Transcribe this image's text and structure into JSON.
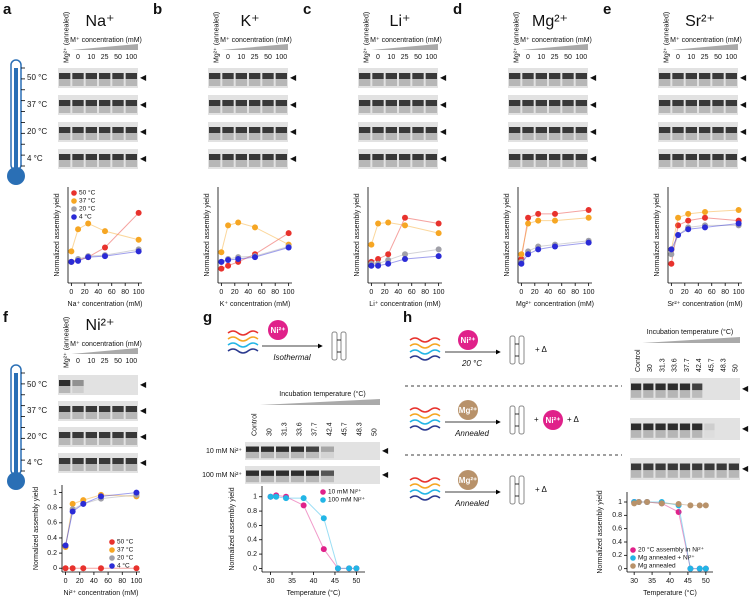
{
  "panels": [
    {
      "letter": "a",
      "title": "Na⁺"
    },
    {
      "letter": "b",
      "title": "K⁺"
    },
    {
      "letter": "c",
      "title": "Li⁺"
    },
    {
      "letter": "d",
      "title": "Mg²⁺"
    },
    {
      "letter": "e",
      "title": "Sr²⁺"
    },
    {
      "letter": "f",
      "title": "Ni²⁺"
    },
    {
      "letter": "g"
    },
    {
      "letter": "h"
    }
  ],
  "gel_labels": {
    "annealed": "Mg²⁺ (annealed)",
    "concentration": "M⁺ concentration (mM)",
    "lanes": [
      "0",
      "10",
      "25",
      "50",
      "100"
    ],
    "temperatures": [
      "50 °C",
      "37 °C",
      "20 °C",
      "4 °C"
    ]
  },
  "g_scheme": {
    "ion": "Ni²⁺",
    "process": "Isothermal",
    "gel_title": "Incubation temperature (°C)",
    "lanes": [
      "Control",
      "30",
      "31.3",
      "33.6",
      "37.7",
      "42.4",
      "45.7",
      "48.3",
      "50"
    ],
    "rows": [
      "10 mM Ni²⁺",
      "100 mM Ni²⁺"
    ]
  },
  "h_scheme": {
    "ni": "Ni²⁺",
    "mg": "Mg²⁺",
    "condition": "20 °C",
    "annealed": "Annealed",
    "delta": "+ Δ",
    "plus": "+"
  },
  "chart_data": [
    {
      "type": "line",
      "x_label": "Na⁺ concentration (mM)",
      "y_label": "Normalized assembly yield",
      "x": [
        0,
        10,
        25,
        50,
        100
      ],
      "xlim": [
        -5,
        105
      ],
      "xticks": [
        0,
        20,
        40,
        60,
        80,
        100
      ],
      "ylim": [
        0,
        1
      ],
      "legend": "upper-left",
      "series": [
        {
          "name": "50 °C",
          "color": "#e8322d",
          "values": [
            0.22,
            0.24,
            0.27,
            0.37,
            0.73
          ]
        },
        {
          "name": "37 °C",
          "color": "#f6a623",
          "values": [
            0.33,
            0.56,
            0.62,
            0.54,
            0.45
          ]
        },
        {
          "name": "20 °C",
          "color": "#a0a0a8",
          "values": [
            0.22,
            0.25,
            0.28,
            0.29,
            0.35
          ]
        },
        {
          "name": "4 °C",
          "color": "#2b2bd6",
          "values": [
            0.22,
            0.23,
            0.27,
            0.28,
            0.33
          ]
        }
      ]
    },
    {
      "type": "line",
      "x_label": "K⁺ concentration (mM)",
      "y_label": "Normalized assembly yield",
      "x": [
        0,
        10,
        25,
        50,
        100
      ],
      "xlim": [
        -5,
        105
      ],
      "xticks": [
        0,
        20,
        40,
        60,
        80,
        100
      ],
      "ylim": [
        0,
        1
      ],
      "series": [
        {
          "color": "#e8322d",
          "values": [
            0.15,
            0.18,
            0.22,
            0.3,
            0.52
          ]
        },
        {
          "color": "#f6a623",
          "values": [
            0.32,
            0.6,
            0.63,
            0.58,
            0.4
          ]
        },
        {
          "color": "#a0a0a8",
          "values": [
            0.22,
            0.25,
            0.27,
            0.28,
            0.38
          ]
        },
        {
          "color": "#2b2bd6",
          "values": [
            0.22,
            0.24,
            0.25,
            0.27,
            0.37
          ]
        }
      ]
    },
    {
      "type": "line",
      "x_label": "Li⁺ concentration (mM)",
      "y_label": "Normalized assembly yield",
      "x": [
        0,
        10,
        25,
        50,
        100
      ],
      "xlim": [
        -5,
        105
      ],
      "xticks": [
        0,
        20,
        40,
        60,
        80,
        100
      ],
      "ylim": [
        0,
        1
      ],
      "series": [
        {
          "color": "#e8322d",
          "values": [
            0.22,
            0.25,
            0.3,
            0.68,
            0.62
          ]
        },
        {
          "color": "#f6a623",
          "values": [
            0.4,
            0.62,
            0.63,
            0.6,
            0.52
          ]
        },
        {
          "color": "#a0a0a8",
          "values": [
            0.2,
            0.2,
            0.24,
            0.3,
            0.35
          ]
        },
        {
          "color": "#2b2bd6",
          "values": [
            0.18,
            0.18,
            0.2,
            0.25,
            0.28
          ]
        }
      ]
    },
    {
      "type": "line",
      "x_label": "Mg²⁺ concentration (mM)",
      "y_label": "Normalized assembly yield",
      "x": [
        0,
        10,
        25,
        50,
        100
      ],
      "xlim": [
        -5,
        105
      ],
      "xticks": [
        0,
        20,
        40,
        60,
        80,
        100
      ],
      "ylim": [
        0,
        1
      ],
      "series": [
        {
          "color": "#e8322d",
          "values": [
            0.25,
            0.68,
            0.72,
            0.72,
            0.76
          ]
        },
        {
          "color": "#f6a623",
          "values": [
            0.3,
            0.62,
            0.65,
            0.65,
            0.68
          ]
        },
        {
          "color": "#a0a0a8",
          "values": [
            0.22,
            0.33,
            0.38,
            0.4,
            0.44
          ]
        },
        {
          "color": "#2b2bd6",
          "values": [
            0.2,
            0.3,
            0.35,
            0.38,
            0.42
          ]
        }
      ]
    },
    {
      "type": "line",
      "x_label": "Sr²⁺ concentration (mM)",
      "y_label": "Normalized assembly yield",
      "x": [
        0,
        10,
        25,
        50,
        100
      ],
      "xlim": [
        -5,
        105
      ],
      "xticks": [
        0,
        20,
        40,
        60,
        80,
        100
      ],
      "ylim": [
        0,
        1
      ],
      "series": [
        {
          "color": "#e8322d",
          "values": [
            0.2,
            0.6,
            0.65,
            0.68,
            0.65
          ]
        },
        {
          "color": "#f6a623",
          "values": [
            0.35,
            0.68,
            0.72,
            0.74,
            0.76
          ]
        },
        {
          "color": "#a0a0a8",
          "values": [
            0.3,
            0.5,
            0.58,
            0.6,
            0.6
          ]
        },
        {
          "color": "#2b2bd6",
          "values": [
            0.35,
            0.5,
            0.56,
            0.58,
            0.62
          ]
        }
      ]
    },
    {
      "type": "line",
      "x_label": "Ni²⁺ concentration (mM)",
      "y_label": "Normalized assembly yield",
      "x": [
        0,
        10,
        25,
        50,
        100
      ],
      "xlim": [
        -5,
        105
      ],
      "xticks": [
        0,
        20,
        40,
        60,
        80,
        100
      ],
      "ylim": [
        -0.05,
        1.1
      ],
      "yticks": [
        0,
        0.2,
        0.4,
        0.6,
        0.8,
        1
      ],
      "legend": "lower-right",
      "series": [
        {
          "name": "50 °C",
          "color": "#e8322d",
          "values": [
            0,
            0,
            0,
            0,
            0
          ]
        },
        {
          "name": "37 °C",
          "color": "#f6a623",
          "values": [
            0.28,
            0.85,
            0.9,
            0.97,
            0.95
          ]
        },
        {
          "name": "20 °C",
          "color": "#a0a0a8",
          "values": [
            0.3,
            0.78,
            0.85,
            0.92,
            0.97
          ]
        },
        {
          "name": "4 °C",
          "color": "#2b2bd6",
          "values": [
            0.3,
            0.75,
            0.85,
            0.95,
            1.0
          ]
        }
      ]
    },
    {
      "type": "line",
      "x_label": "Temperature (°C)",
      "y_label": "Normalized assembly yield",
      "x": [
        30,
        31.3,
        33.6,
        37.7,
        42.4,
        45.7,
        48.3,
        50
      ],
      "xlim": [
        28,
        52
      ],
      "xticks": [
        30,
        35,
        40,
        45,
        50
      ],
      "ylim": [
        -0.05,
        1.15
      ],
      "yticks": [
        0,
        0.2,
        0.4,
        0.6,
        0.8,
        1
      ],
      "legend": "upper-right",
      "series": [
        {
          "name": "10 mM Ni²⁺",
          "color": "#e0218a",
          "values": [
            1.0,
            1.02,
            1.0,
            0.88,
            0.27,
            0,
            0,
            0
          ]
        },
        {
          "name": "100 mM Ni²⁺",
          "color": "#22b5e6",
          "values": [
            1.0,
            1.0,
            0.98,
            0.98,
            0.7,
            0,
            0,
            0
          ]
        }
      ]
    },
    {
      "type": "line",
      "x_label": "Temperature (°C)",
      "y_label": "Normalized assembly yield",
      "x": [
        30,
        31.3,
        33.6,
        37.7,
        42.4,
        45.7,
        48.3,
        50
      ],
      "xlim": [
        28,
        52
      ],
      "xticks": [
        30,
        35,
        40,
        45,
        50
      ],
      "ylim": [
        -0.05,
        1.15
      ],
      "yticks": [
        0,
        0.2,
        0.4,
        0.6,
        0.8,
        1
      ],
      "legend": "lower-left",
      "series": [
        {
          "name": "20 °C assembly in Ni²⁺",
          "color": "#e0218a",
          "values": [
            1.0,
            1.0,
            1.0,
            0.98,
            0.85,
            0,
            0,
            0
          ]
        },
        {
          "name": "Mg annealed + Ni²⁺",
          "color": "#22b5e6",
          "values": [
            1.0,
            1.0,
            1.0,
            1.0,
            0.95,
            0,
            0,
            0
          ]
        },
        {
          "name": "Mg annealed",
          "color": "#b8926a",
          "values": [
            0.98,
            1.0,
            1.0,
            0.98,
            0.97,
            0.95,
            0.95,
            0.95
          ]
        }
      ]
    }
  ]
}
